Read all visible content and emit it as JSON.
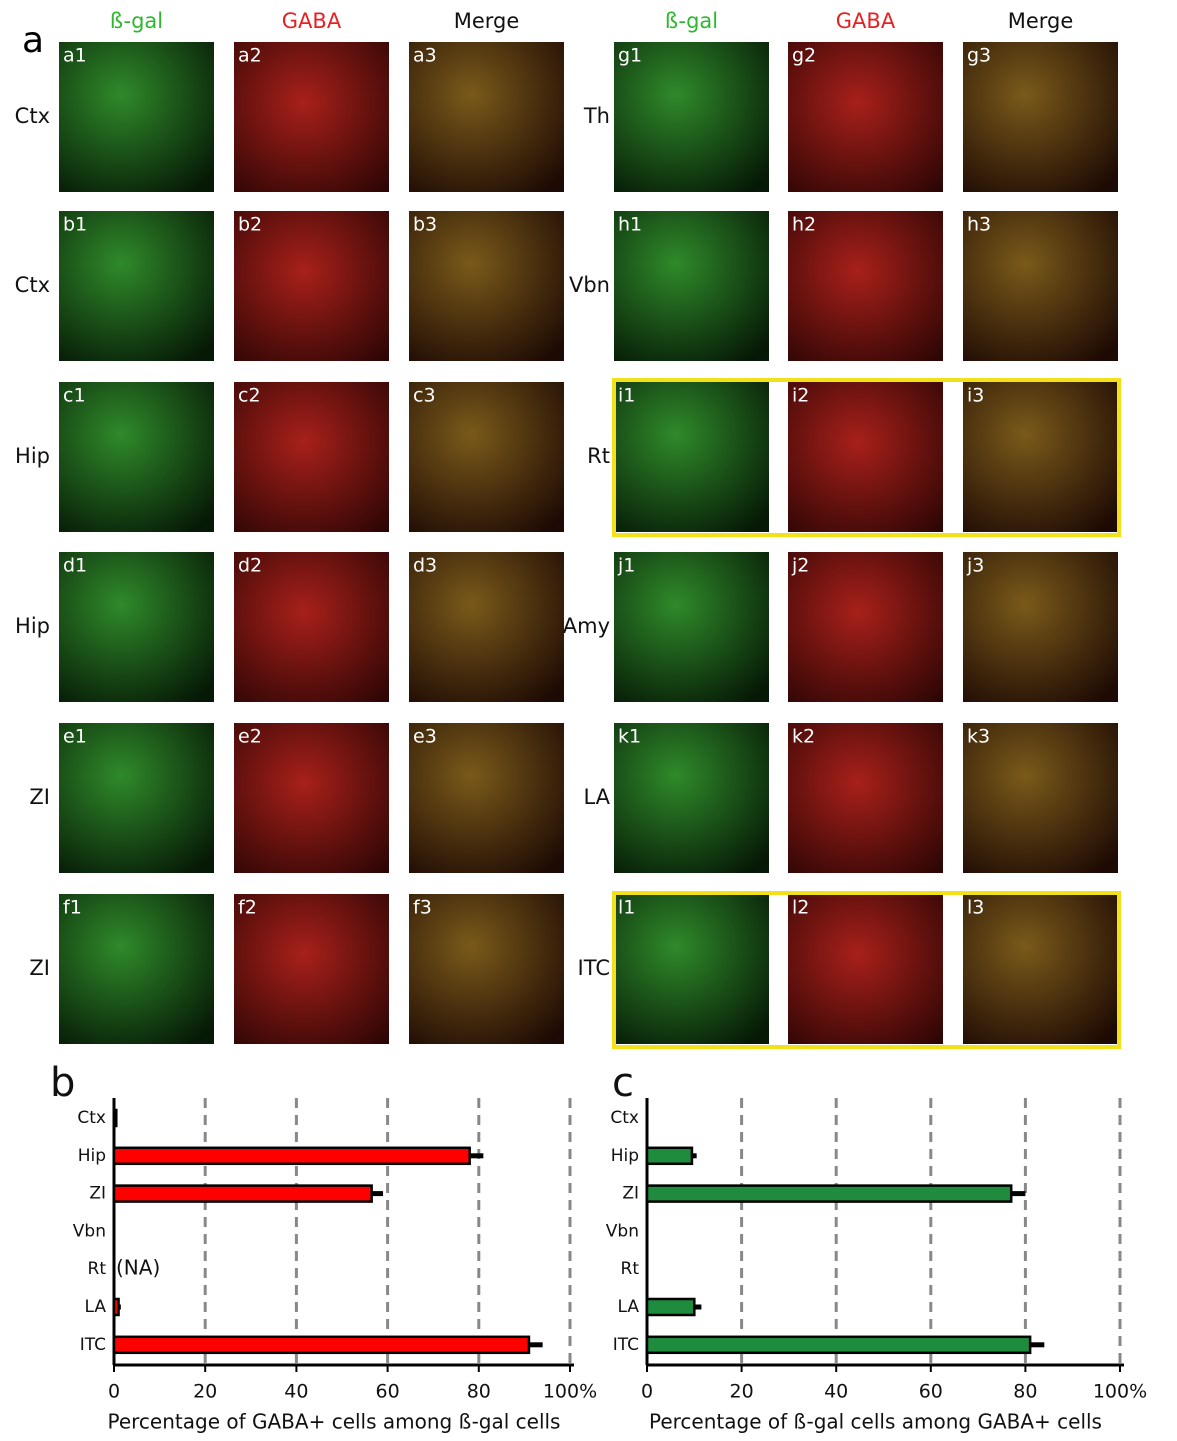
{
  "figure_a": {
    "label": "a",
    "left": {
      "columns": [
        "ß-gal",
        "GABA",
        "Merge"
      ],
      "rows": [
        {
          "region": "Ctx",
          "panels": [
            "a1",
            "a2",
            "a3"
          ]
        },
        {
          "region": "Ctx",
          "panels": [
            "b1",
            "b2",
            "b3"
          ]
        },
        {
          "region": "Hip",
          "panels": [
            "c1",
            "c2",
            "c3"
          ]
        },
        {
          "region": "Hip",
          "panels": [
            "d1",
            "d2",
            "d3"
          ]
        },
        {
          "region": "ZI",
          "panels": [
            "e1",
            "e2",
            "e3"
          ]
        },
        {
          "region": "ZI",
          "panels": [
            "f1",
            "f2",
            "f3"
          ]
        }
      ]
    },
    "right": {
      "columns": [
        "ß-gal",
        "GABA",
        "Merge"
      ],
      "rows": [
        {
          "region": "Th",
          "panels": [
            "g1",
            "g2",
            "g3"
          ]
        },
        {
          "region": "Vbn",
          "panels": [
            "h1",
            "h2",
            "h3"
          ]
        },
        {
          "region": "Rt",
          "panels": [
            "i1",
            "i2",
            "i3"
          ]
        },
        {
          "region": "Amy",
          "panels": [
            "j1",
            "j2",
            "j3"
          ]
        },
        {
          "region": "LA",
          "panels": [
            "k1",
            "k2",
            "k3"
          ]
        },
        {
          "region": "ITC",
          "panels": [
            "l1",
            "l2",
            "l3"
          ]
        }
      ]
    }
  },
  "chart_data": [
    {
      "type": "bar",
      "orientation": "horizontal",
      "title": "b",
      "xlabel": "Percentage of GABA+ cells among ß-gal cells",
      "categories": [
        "Ctx",
        "Hip",
        "ZI",
        "Vbn",
        "Rt",
        "LA",
        "ITC"
      ],
      "values": [
        0.5,
        78,
        56.5,
        0,
        null,
        1,
        91
      ],
      "errors": [
        0,
        3,
        2.5,
        0,
        null,
        0.5,
        3
      ],
      "annotation": "(NA)",
      "color": "#ff0000",
      "xlim": [
        0,
        100
      ],
      "xticks": [
        0,
        20,
        40,
        60,
        80,
        {
          "value": 100,
          "label": "100%"
        }
      ],
      "grid": true
    },
    {
      "type": "bar",
      "orientation": "horizontal",
      "title": "c",
      "xlabel": "Percentage of  ß-gal cells among GABA+ cells",
      "categories": [
        "Ctx",
        "Hip",
        "ZI",
        "Vbn",
        "Rt",
        "LA",
        "ITC"
      ],
      "values": [
        0,
        9.5,
        77,
        0,
        0,
        10,
        81
      ],
      "errors": [
        0,
        1,
        3,
        0,
        0,
        1.5,
        3
      ],
      "color": "#1e8c3c",
      "xlim": [
        0,
        100
      ],
      "xticks": [
        0,
        20,
        40,
        60,
        80,
        {
          "value": 100,
          "label": "100%"
        }
      ],
      "grid": true
    }
  ]
}
